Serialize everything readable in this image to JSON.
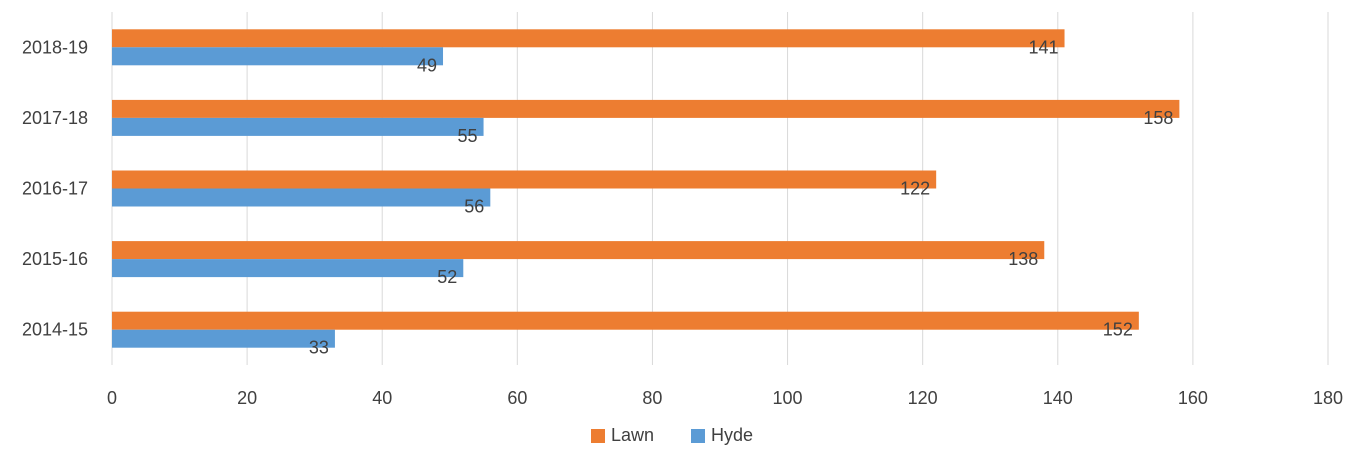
{
  "chart_data": {
    "type": "bar",
    "orientation": "horizontal",
    "categories": [
      "2014-15",
      "2015-16",
      "2016-17",
      "2017-18",
      "2018-19"
    ],
    "series": [
      {
        "name": "Lawn",
        "color": "#ED7D31",
        "values": [
          152,
          138,
          122,
          158,
          141
        ]
      },
      {
        "name": "Hyde",
        "color": "#5B9BD5",
        "values": [
          33,
          52,
          56,
          55,
          49
        ]
      }
    ],
    "title": "",
    "xlabel": "",
    "ylabel": "",
    "xlim": [
      0,
      180
    ],
    "x_ticks": [
      0,
      20,
      40,
      60,
      80,
      100,
      120,
      140,
      160,
      180
    ],
    "grid": "vertical",
    "legend_position": "bottom",
    "data_labels": true
  }
}
